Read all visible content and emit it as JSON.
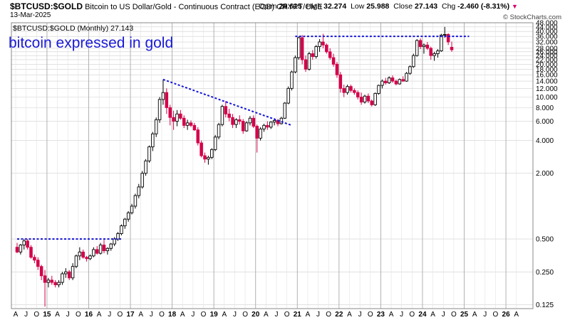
{
  "header": {
    "symbol": "$BTCUSD:$GOLD",
    "description": "Bitcoin to US Dollar/Gold - Continuous Contract (EOD)",
    "exchange": "CRYPT/CME",
    "date": "13-Mar-2025",
    "open_label": "Open",
    "open": "28.615",
    "high_label": "High",
    "high": "32.274",
    "low_label": "Low",
    "low": "25.988",
    "close_label": "Close",
    "close": "27.143",
    "chg_label": "Chg",
    "chg": "-2.460 (-8.31%)",
    "brand": "© StockCharts.com"
  },
  "chart_data": {
    "type": "candlestick",
    "legend_label": "$BTCUSD:$GOLD (Monthly) 27.143",
    "annotation": "bitcoin expressed in gold",
    "y_scale": "log",
    "ylim": [
      0.115,
      48
    ],
    "y_ticks": [
      {
        "v": 48,
        "label": "48.000"
      },
      {
        "v": 44,
        "label": "44.000"
      },
      {
        "v": 40,
        "label": "40.000"
      },
      {
        "v": 36,
        "label": "36.000"
      },
      {
        "v": 32,
        "label": "32.000"
      },
      {
        "v": 28,
        "label": "28.000"
      },
      {
        "v": 26,
        "label": "26.000"
      },
      {
        "v": 24,
        "label": "24.000"
      },
      {
        "v": 22,
        "label": "22.000"
      },
      {
        "v": 20,
        "label": "20.000"
      },
      {
        "v": 18,
        "label": "18.000"
      },
      {
        "v": 16,
        "label": "16.000"
      },
      {
        "v": 14,
        "label": "14.000"
      },
      {
        "v": 12,
        "label": "12.000"
      },
      {
        "v": 10,
        "label": "10.000"
      },
      {
        "v": 8,
        "label": "8.000"
      },
      {
        "v": 6,
        "label": "6.000"
      },
      {
        "v": 4,
        "label": "4.000"
      },
      {
        "v": 2,
        "label": "2.000"
      },
      {
        "v": 0.5,
        "label": "0.500"
      },
      {
        "v": 0.25,
        "label": "0.250"
      },
      {
        "v": 0.125,
        "label": "0.125"
      }
    ],
    "x_labels": [
      "A",
      "J",
      "O",
      "15",
      "A",
      "J",
      "O",
      "16",
      "A",
      "J",
      "O",
      "17",
      "A",
      "J",
      "O",
      "18",
      "A",
      "J",
      "O",
      "19",
      "A",
      "J",
      "O",
      "20",
      "A",
      "J",
      "O",
      "21",
      "A",
      "J",
      "O",
      "22",
      "A",
      "J",
      "O",
      "23",
      "A",
      "J",
      "O",
      "24",
      "A",
      "J",
      "O",
      "25",
      "A",
      "J",
      "O",
      "26",
      "A"
    ],
    "year_gridlines_at_label_index": [
      3,
      7,
      11,
      15,
      19,
      23,
      27,
      31,
      35,
      39,
      43,
      47
    ],
    "candles": [
      {
        "o": 0.42,
        "h": 0.46,
        "l": 0.37,
        "c": 0.38
      },
      {
        "o": 0.38,
        "h": 0.45,
        "l": 0.36,
        "c": 0.44
      },
      {
        "o": 0.44,
        "h": 0.5,
        "l": 0.4,
        "c": 0.48
      },
      {
        "o": 0.48,
        "h": 0.5,
        "l": 0.4,
        "c": 0.42
      },
      {
        "o": 0.42,
        "h": 0.44,
        "l": 0.33,
        "c": 0.34
      },
      {
        "o": 0.34,
        "h": 0.36,
        "l": 0.3,
        "c": 0.32
      },
      {
        "o": 0.32,
        "h": 0.34,
        "l": 0.26,
        "c": 0.28
      },
      {
        "o": 0.28,
        "h": 0.29,
        "l": 0.21,
        "c": 0.23
      },
      {
        "o": 0.23,
        "h": 0.26,
        "l": 0.12,
        "c": 0.2
      },
      {
        "o": 0.2,
        "h": 0.22,
        "l": 0.18,
        "c": 0.21
      },
      {
        "o": 0.21,
        "h": 0.23,
        "l": 0.19,
        "c": 0.2
      },
      {
        "o": 0.2,
        "h": 0.21,
        "l": 0.18,
        "c": 0.19
      },
      {
        "o": 0.19,
        "h": 0.21,
        "l": 0.18,
        "c": 0.2
      },
      {
        "o": 0.2,
        "h": 0.25,
        "l": 0.19,
        "c": 0.24
      },
      {
        "o": 0.24,
        "h": 0.27,
        "l": 0.22,
        "c": 0.25
      },
      {
        "o": 0.25,
        "h": 0.26,
        "l": 0.21,
        "c": 0.22
      },
      {
        "o": 0.22,
        "h": 0.3,
        "l": 0.21,
        "c": 0.28
      },
      {
        "o": 0.28,
        "h": 0.36,
        "l": 0.27,
        "c": 0.35
      },
      {
        "o": 0.35,
        "h": 0.42,
        "l": 0.32,
        "c": 0.38
      },
      {
        "o": 0.38,
        "h": 0.4,
        "l": 0.33,
        "c": 0.34
      },
      {
        "o": 0.34,
        "h": 0.35,
        "l": 0.31,
        "c": 0.33
      },
      {
        "o": 0.33,
        "h": 0.36,
        "l": 0.32,
        "c": 0.35
      },
      {
        "o": 0.35,
        "h": 0.42,
        "l": 0.34,
        "c": 0.4
      },
      {
        "o": 0.4,
        "h": 0.43,
        "l": 0.36,
        "c": 0.37
      },
      {
        "o": 0.37,
        "h": 0.46,
        "l": 0.36,
        "c": 0.44
      },
      {
        "o": 0.44,
        "h": 0.49,
        "l": 0.37,
        "c": 0.39
      },
      {
        "o": 0.39,
        "h": 0.42,
        "l": 0.36,
        "c": 0.41
      },
      {
        "o": 0.41,
        "h": 0.46,
        "l": 0.39,
        "c": 0.45
      },
      {
        "o": 0.45,
        "h": 0.52,
        "l": 0.43,
        "c": 0.5
      },
      {
        "o": 0.5,
        "h": 0.58,
        "l": 0.48,
        "c": 0.56
      },
      {
        "o": 0.56,
        "h": 0.68,
        "l": 0.54,
        "c": 0.66
      },
      {
        "o": 0.66,
        "h": 0.78,
        "l": 0.62,
        "c": 0.76
      },
      {
        "o": 0.76,
        "h": 0.9,
        "l": 0.72,
        "c": 0.87
      },
      {
        "o": 0.87,
        "h": 1.05,
        "l": 0.84,
        "c": 1.0
      },
      {
        "o": 1.0,
        "h": 1.3,
        "l": 0.95,
        "c": 1.25
      },
      {
        "o": 1.25,
        "h": 1.6,
        "l": 1.18,
        "c": 1.5
      },
      {
        "o": 1.5,
        "h": 2.1,
        "l": 1.45,
        "c": 2.0
      },
      {
        "o": 2.0,
        "h": 2.7,
        "l": 1.9,
        "c": 2.6
      },
      {
        "o": 2.6,
        "h": 3.6,
        "l": 2.5,
        "c": 3.5
      },
      {
        "o": 3.5,
        "h": 4.8,
        "l": 3.2,
        "c": 4.6
      },
      {
        "o": 4.6,
        "h": 6.5,
        "l": 4.3,
        "c": 6.2
      },
      {
        "o": 6.2,
        "h": 10.0,
        "l": 5.8,
        "c": 9.5
      },
      {
        "o": 9.5,
        "h": 14.5,
        "l": 8.5,
        "c": 11.0
      },
      {
        "o": 11.0,
        "h": 12.0,
        "l": 7.0,
        "c": 8.0
      },
      {
        "o": 8.0,
        "h": 8.5,
        "l": 5.5,
        "c": 6.5
      },
      {
        "o": 6.5,
        "h": 7.5,
        "l": 5.0,
        "c": 6.0
      },
      {
        "o": 6.0,
        "h": 7.6,
        "l": 5.4,
        "c": 7.0
      },
      {
        "o": 7.0,
        "h": 7.6,
        "l": 6.2,
        "c": 6.4
      },
      {
        "o": 6.4,
        "h": 6.8,
        "l": 5.2,
        "c": 5.5
      },
      {
        "o": 5.5,
        "h": 6.2,
        "l": 5.0,
        "c": 5.8
      },
      {
        "o": 5.8,
        "h": 6.1,
        "l": 5.3,
        "c": 5.5
      },
      {
        "o": 5.5,
        "h": 5.8,
        "l": 4.9,
        "c": 5.0
      },
      {
        "o": 5.0,
        "h": 5.3,
        "l": 3.6,
        "c": 3.8
      },
      {
        "o": 3.8,
        "h": 4.0,
        "l": 2.8,
        "c": 2.9
      },
      {
        "o": 2.9,
        "h": 3.1,
        "l": 2.5,
        "c": 2.7
      },
      {
        "o": 2.7,
        "h": 2.9,
        "l": 2.4,
        "c": 2.8
      },
      {
        "o": 2.8,
        "h": 3.4,
        "l": 2.7,
        "c": 3.3
      },
      {
        "o": 3.3,
        "h": 4.5,
        "l": 3.2,
        "c": 4.3
      },
      {
        "o": 4.3,
        "h": 5.8,
        "l": 4.1,
        "c": 5.6
      },
      {
        "o": 5.6,
        "h": 8.5,
        "l": 5.4,
        "c": 8.2
      },
      {
        "o": 8.2,
        "h": 9.2,
        "l": 6.5,
        "c": 7.0
      },
      {
        "o": 7.0,
        "h": 7.8,
        "l": 6.0,
        "c": 6.5
      },
      {
        "o": 6.5,
        "h": 7.0,
        "l": 5.2,
        "c": 5.6
      },
      {
        "o": 5.6,
        "h": 6.4,
        "l": 5.2,
        "c": 6.2
      },
      {
        "o": 6.2,
        "h": 6.8,
        "l": 5.6,
        "c": 6.0
      },
      {
        "o": 6.0,
        "h": 6.3,
        "l": 4.6,
        "c": 4.9
      },
      {
        "o": 4.9,
        "h": 6.0,
        "l": 4.8,
        "c": 5.8
      },
      {
        "o": 5.8,
        "h": 6.7,
        "l": 5.5,
        "c": 6.4
      },
      {
        "o": 6.4,
        "h": 6.8,
        "l": 5.2,
        "c": 5.4
      },
      {
        "o": 5.4,
        "h": 5.6,
        "l": 3.1,
        "c": 4.2
      },
      {
        "o": 4.2,
        "h": 5.3,
        "l": 4.0,
        "c": 5.1
      },
      {
        "o": 5.1,
        "h": 5.7,
        "l": 4.8,
        "c": 5.5
      },
      {
        "o": 5.5,
        "h": 6.0,
        "l": 5.0,
        "c": 5.3
      },
      {
        "o": 5.3,
        "h": 6.0,
        "l": 5.1,
        "c": 5.9
      },
      {
        "o": 5.9,
        "h": 6.4,
        "l": 5.5,
        "c": 6.1
      },
      {
        "o": 6.1,
        "h": 6.3,
        "l": 5.4,
        "c": 5.7
      },
      {
        "o": 5.7,
        "h": 6.6,
        "l": 5.6,
        "c": 6.4
      },
      {
        "o": 6.4,
        "h": 9.0,
        "l": 6.3,
        "c": 8.8
      },
      {
        "o": 8.8,
        "h": 12.5,
        "l": 8.6,
        "c": 12.0
      },
      {
        "o": 12.0,
        "h": 17.5,
        "l": 11.5,
        "c": 17.0
      },
      {
        "o": 17.0,
        "h": 24.0,
        "l": 16.5,
        "c": 23.0
      },
      {
        "o": 23.0,
        "h": 36.0,
        "l": 22.0,
        "c": 35.0
      },
      {
        "o": 35.0,
        "h": 37.0,
        "l": 20.0,
        "c": 22.0
      },
      {
        "o": 22.0,
        "h": 24.0,
        "l": 17.0,
        "c": 18.0
      },
      {
        "o": 18.0,
        "h": 26.0,
        "l": 17.5,
        "c": 25.0
      },
      {
        "o": 25.0,
        "h": 27.0,
        "l": 22.0,
        "c": 23.5
      },
      {
        "o": 23.5,
        "h": 30.0,
        "l": 22.5,
        "c": 29.0
      },
      {
        "o": 29.0,
        "h": 34.0,
        "l": 26.0,
        "c": 32.0
      },
      {
        "o": 32.0,
        "h": 38.0,
        "l": 28.0,
        "c": 30.0
      },
      {
        "o": 30.0,
        "h": 31.0,
        "l": 25.0,
        "c": 26.0
      },
      {
        "o": 26.0,
        "h": 28.0,
        "l": 22.0,
        "c": 23.0
      },
      {
        "o": 23.0,
        "h": 25.0,
        "l": 19.0,
        "c": 20.0
      },
      {
        "o": 20.0,
        "h": 21.0,
        "l": 15.0,
        "c": 16.0
      },
      {
        "o": 16.0,
        "h": 17.0,
        "l": 11.0,
        "c": 12.0
      },
      {
        "o": 12.0,
        "h": 13.0,
        "l": 10.0,
        "c": 11.0
      },
      {
        "o": 11.0,
        "h": 13.0,
        "l": 10.5,
        "c": 12.5
      },
      {
        "o": 12.5,
        "h": 13.0,
        "l": 11.0,
        "c": 11.5
      },
      {
        "o": 11.5,
        "h": 12.0,
        "l": 10.5,
        "c": 11.0
      },
      {
        "o": 11.0,
        "h": 11.5,
        "l": 9.5,
        "c": 10.0
      },
      {
        "o": 10.0,
        "h": 11.0,
        "l": 8.5,
        "c": 9.0
      },
      {
        "o": 9.0,
        "h": 10.5,
        "l": 8.7,
        "c": 10.2
      },
      {
        "o": 10.2,
        "h": 10.8,
        "l": 8.8,
        "c": 9.2
      },
      {
        "o": 9.2,
        "h": 9.5,
        "l": 8.2,
        "c": 8.5
      },
      {
        "o": 8.5,
        "h": 11.0,
        "l": 8.3,
        "c": 10.8
      },
      {
        "o": 10.8,
        "h": 13.0,
        "l": 10.5,
        "c": 12.8
      },
      {
        "o": 12.8,
        "h": 14.5,
        "l": 12.0,
        "c": 14.0
      },
      {
        "o": 14.0,
        "h": 15.0,
        "l": 13.0,
        "c": 13.5
      },
      {
        "o": 13.5,
        "h": 15.5,
        "l": 13.2,
        "c": 15.0
      },
      {
        "o": 15.0,
        "h": 15.8,
        "l": 13.5,
        "c": 14.0
      },
      {
        "o": 14.0,
        "h": 14.5,
        "l": 12.8,
        "c": 13.2
      },
      {
        "o": 13.2,
        "h": 14.8,
        "l": 13.0,
        "c": 14.5
      },
      {
        "o": 14.5,
        "h": 15.5,
        "l": 13.8,
        "c": 14.0
      },
      {
        "o": 14.0,
        "h": 17.0,
        "l": 13.8,
        "c": 16.5
      },
      {
        "o": 16.5,
        "h": 19.5,
        "l": 16.0,
        "c": 19.0
      },
      {
        "o": 19.0,
        "h": 25.0,
        "l": 18.5,
        "c": 24.0
      },
      {
        "o": 24.0,
        "h": 34.0,
        "l": 23.5,
        "c": 33.0
      },
      {
        "o": 33.0,
        "h": 34.5,
        "l": 27.5,
        "c": 29.0
      },
      {
        "o": 29.0,
        "h": 31.0,
        "l": 25.0,
        "c": 30.0
      },
      {
        "o": 30.0,
        "h": 32.0,
        "l": 27.0,
        "c": 28.0
      },
      {
        "o": 28.0,
        "h": 29.0,
        "l": 22.0,
        "c": 24.0
      },
      {
        "o": 24.0,
        "h": 26.0,
        "l": 21.5,
        "c": 25.0
      },
      {
        "o": 25.0,
        "h": 27.5,
        "l": 23.0,
        "c": 26.5
      },
      {
        "o": 26.5,
        "h": 38.0,
        "l": 26.0,
        "c": 37.0
      },
      {
        "o": 37.0,
        "h": 44.0,
        "l": 35.0,
        "c": 37.5
      },
      {
        "o": 37.5,
        "h": 38.5,
        "l": 30.0,
        "c": 32.0
      },
      {
        "o": 28.615,
        "h": 32.274,
        "l": 25.988,
        "c": 27.143
      }
    ],
    "trendlines": [
      {
        "label": "resistance-2015",
        "from": [
          0,
          0.5
        ],
        "to": [
          30,
          0.5
        ]
      },
      {
        "label": "descending-2018-2020",
        "from": [
          42,
          14.5
        ],
        "to": [
          79,
          5.5
        ]
      },
      {
        "label": "resistance-2021-2025",
        "from": [
          80,
          36.0
        ],
        "to": [
          130,
          36.0
        ]
      }
    ],
    "colors": {
      "up": "#ffffff",
      "down": "#d4004b",
      "wick": "#000000",
      "trend": "#1414d8",
      "annotation": "#1a1ad6",
      "grid": "#cfcfcf"
    }
  }
}
